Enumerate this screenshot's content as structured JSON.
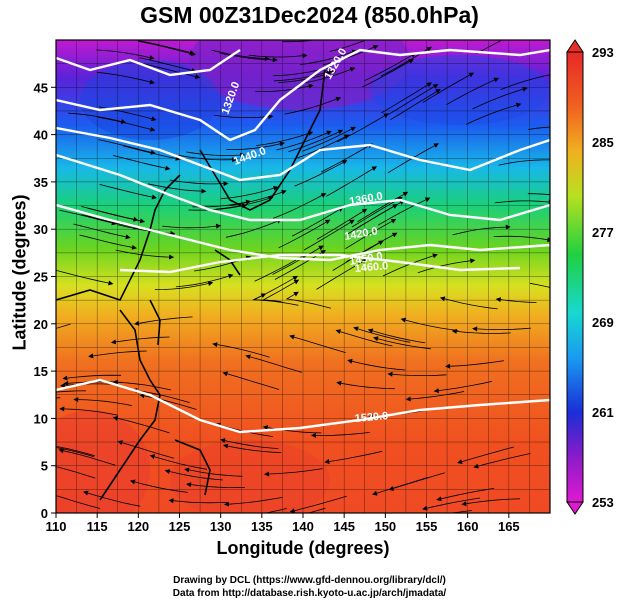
{
  "title": "GSM 00Z31Dec2024 (850.0hPa)",
  "xlabel": "Longitude (degrees)",
  "ylabel": "Latitude (degrees)",
  "credits": {
    "line1": "Drawing by DCL (https://www.gfd-dennou.org/library/dcl/)",
    "line2": "Data from http://database.rish.kyoto-u.ac.jp/arch/jmadata/"
  },
  "map": {
    "lon_range": [
      110,
      170
    ],
    "lat_range": [
      0,
      50
    ],
    "x_ticks": [
      110,
      115,
      120,
      125,
      130,
      135,
      140,
      145,
      150,
      155,
      160,
      165
    ],
    "y_ticks": [
      0,
      5,
      10,
      15,
      20,
      25,
      30,
      35,
      40,
      45
    ],
    "grid": true
  },
  "colorbar": {
    "min": 253,
    "max": 293,
    "tick_labels": [
      "293",
      "285",
      "277",
      "269",
      "261",
      "253"
    ],
    "tick_values": [
      293,
      285,
      277,
      269,
      261,
      253
    ],
    "colors": [
      "#e01ad0",
      "#8a1cc8",
      "#2a1eda",
      "#1a5cf0",
      "#1aaaf0",
      "#18d8c8",
      "#1ad05a",
      "#60d820",
      "#c8e020",
      "#f0c820",
      "#f08820",
      "#f04820",
      "#e82828"
    ]
  },
  "contours": {
    "labels": [
      "1320.0",
      "1320.0",
      "1440.0",
      "1360.0",
      "1420.0",
      "1450.0",
      "1460.0",
      "1520.0"
    ]
  }
}
